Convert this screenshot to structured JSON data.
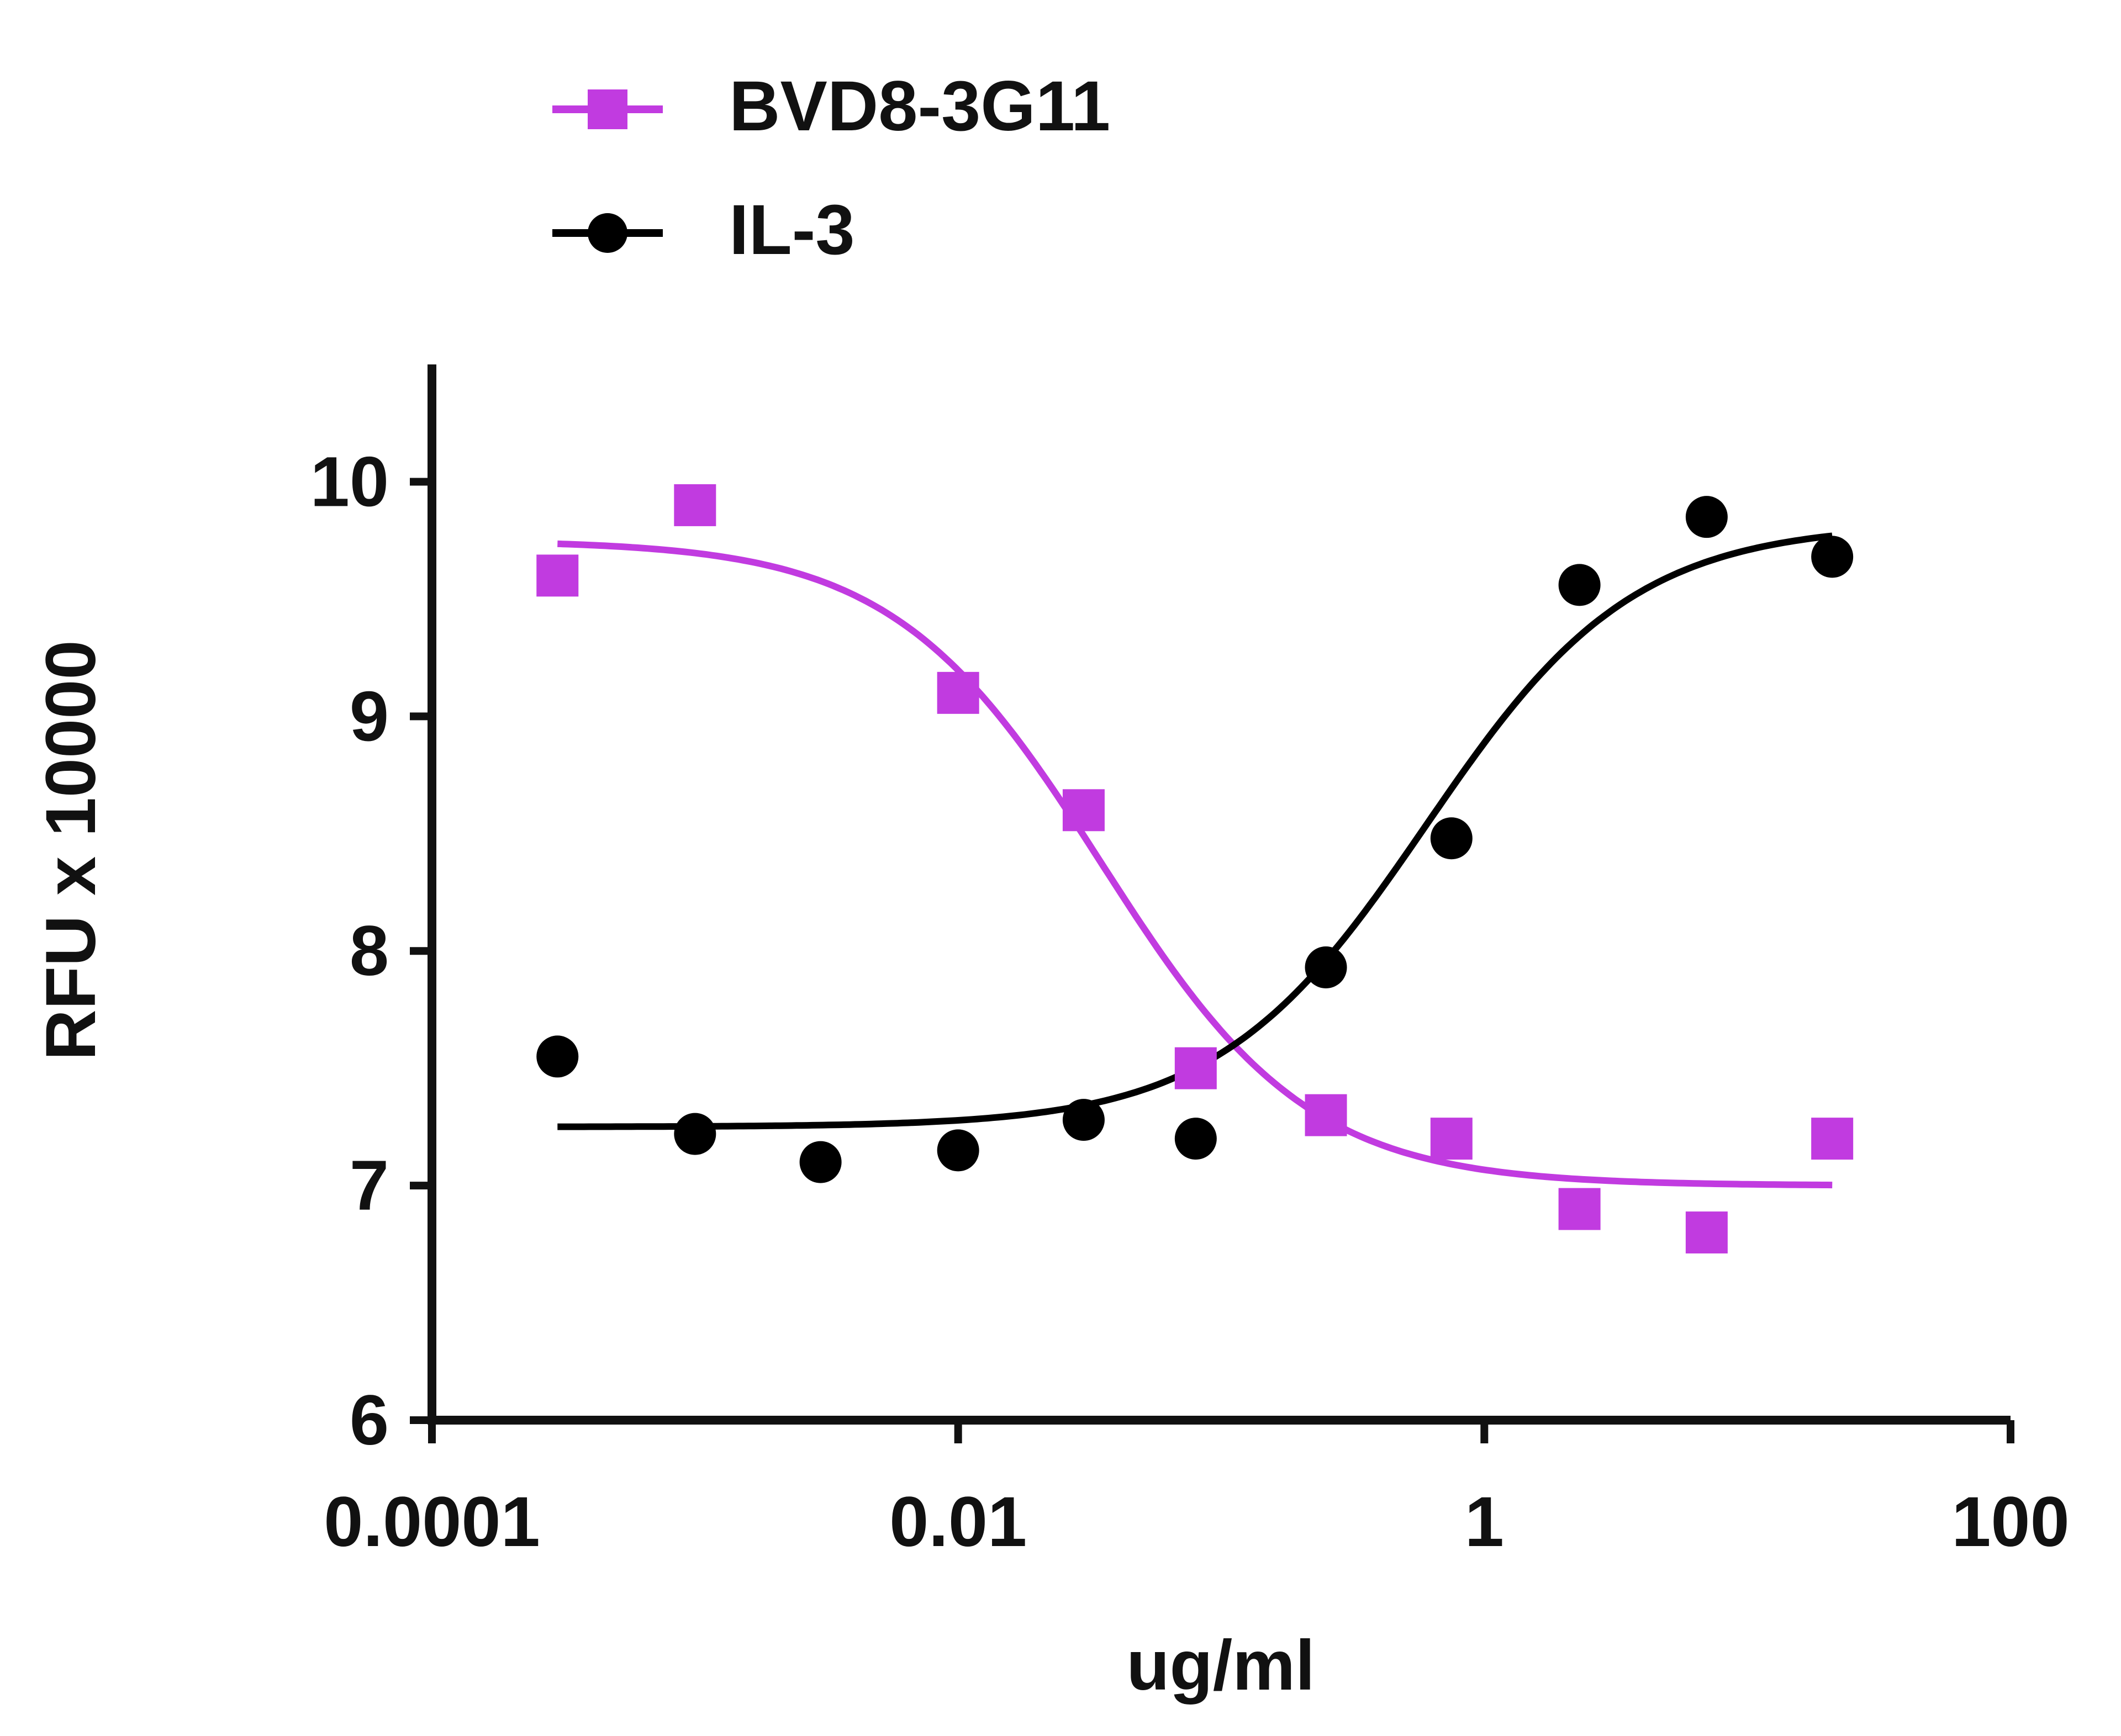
{
  "chart_data": {
    "type": "scatter",
    "xscale": "log10",
    "xlabel": "ug/ml",
    "ylabel": "RFU x 10000",
    "xlim": [
      0.0001,
      100
    ],
    "ylim": [
      6,
      10.5
    ],
    "xticks": [
      0.0001,
      0.01,
      1,
      100
    ],
    "xtick_labels": [
      "0.0001",
      "0.01",
      "1",
      "100"
    ],
    "yticks": [
      6,
      7,
      8,
      9,
      10
    ],
    "ytick_labels": [
      "6",
      "7",
      "8",
      "9",
      "10"
    ],
    "legend_position": "top-left",
    "series": [
      {
        "name": "BVD8-3G11",
        "color": "#c13be0",
        "marker": "square",
        "points": [
          {
            "x": 0.0003,
            "y": 9.6
          },
          {
            "x": 0.001,
            "y": 9.9
          },
          {
            "x": 0.01,
            "y": 9.1
          },
          {
            "x": 0.03,
            "y": 8.6
          },
          {
            "x": 0.08,
            "y": 7.5
          },
          {
            "x": 0.25,
            "y": 7.3
          },
          {
            "x": 0.75,
            "y": 7.2
          },
          {
            "x": 2.3,
            "y": 6.9
          },
          {
            "x": 7,
            "y": 6.8
          },
          {
            "x": 21,
            "y": 7.2
          }
        ],
        "fit": {
          "top": 9.75,
          "bottom": 7.0,
          "ec50": 0.035,
          "hill": -1.1,
          "x_range": [
            0.0003,
            21
          ]
        }
      },
      {
        "name": "IL-3",
        "color": "#000000",
        "marker": "circle",
        "points": [
          {
            "x": 0.0003,
            "y": 7.55
          },
          {
            "x": 0.001,
            "y": 7.22
          },
          {
            "x": 0.003,
            "y": 7.1
          },
          {
            "x": 0.01,
            "y": 7.15
          },
          {
            "x": 0.03,
            "y": 7.28
          },
          {
            "x": 0.08,
            "y": 7.2
          },
          {
            "x": 0.25,
            "y": 7.93
          },
          {
            "x": 0.75,
            "y": 8.48
          },
          {
            "x": 2.3,
            "y": 9.56
          },
          {
            "x": 7,
            "y": 9.85
          },
          {
            "x": 21,
            "y": 9.68
          }
        ],
        "fit": {
          "top": 9.82,
          "bottom": 7.25,
          "ec50": 0.6,
          "hill": 1.1,
          "x_range": [
            0.0003,
            21
          ]
        }
      }
    ]
  }
}
